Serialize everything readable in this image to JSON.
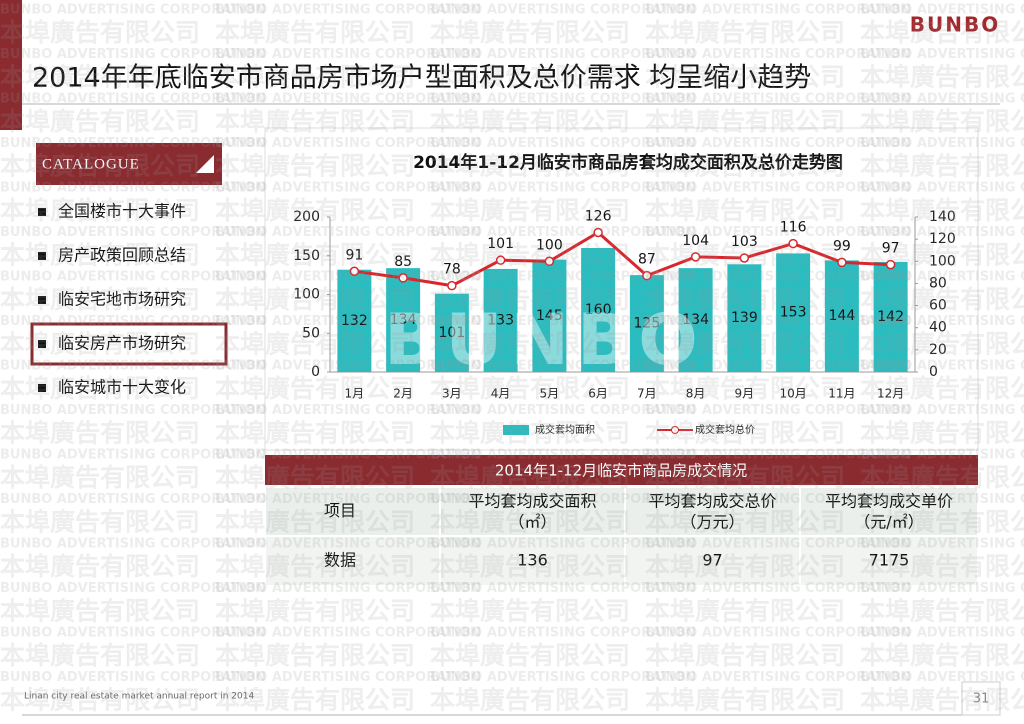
{
  "header": {
    "logo": "BUNBO",
    "title": "2014年年底临安市商品房市场户型面积及总价需求  均呈缩小趋势"
  },
  "watermark": {
    "english": "BUNBO ADVERTISING CORPORATION",
    "chinese": "本埠廣告有限公司"
  },
  "catalogue": {
    "title": "CATALOGUE",
    "items": [
      "全国楼市十大事件",
      "房产政策回顾总结",
      "临安宅地市场研究",
      "临安房产市场研究",
      "临安城市十大变化"
    ],
    "active": 3
  },
  "chart_data": {
    "type": "bar-line",
    "title": "2014年1-12月临安市商品房套均成交面积及总价走势图",
    "categories": [
      "1月",
      "2月",
      "3月",
      "4月",
      "5月",
      "6月",
      "7月",
      "8月",
      "9月",
      "10月",
      "11月",
      "12月"
    ],
    "series": [
      {
        "name": "成交套均面积",
        "type": "bar",
        "color": "#2bbcc0",
        "values": [
          132,
          134,
          101,
          133,
          145,
          160,
          125,
          134,
          139,
          153,
          144,
          142
        ]
      },
      {
        "name": "成交套均总价",
        "type": "line",
        "axis": "y2",
        "color": "#d9262c",
        "values": [
          91,
          85,
          78,
          101,
          100,
          126,
          87,
          104,
          103,
          116,
          99,
          97
        ]
      }
    ],
    "ylim": [
      0,
      200
    ],
    "yticks": [
      0,
      50,
      100,
      150,
      200
    ],
    "y2lim": [
      0,
      140
    ],
    "y2ticks": [
      0,
      20,
      40,
      60,
      80,
      100,
      120,
      140
    ],
    "legend": "bottom"
  },
  "table": {
    "title": "2014年1-12月临安市商品房成交情况",
    "header": [
      [
        "项目"
      ],
      [
        "平均套均成交面积",
        "（㎡）"
      ],
      [
        "平均套均成交总价",
        "（万元）"
      ],
      [
        "平均套均成交单价",
        "（元/㎡）"
      ]
    ],
    "rows": [
      [
        "数据",
        "136",
        "97",
        "7175"
      ]
    ]
  },
  "footer": {
    "note": "Linan city real estate market annual report in 2014",
    "page": "31"
  }
}
